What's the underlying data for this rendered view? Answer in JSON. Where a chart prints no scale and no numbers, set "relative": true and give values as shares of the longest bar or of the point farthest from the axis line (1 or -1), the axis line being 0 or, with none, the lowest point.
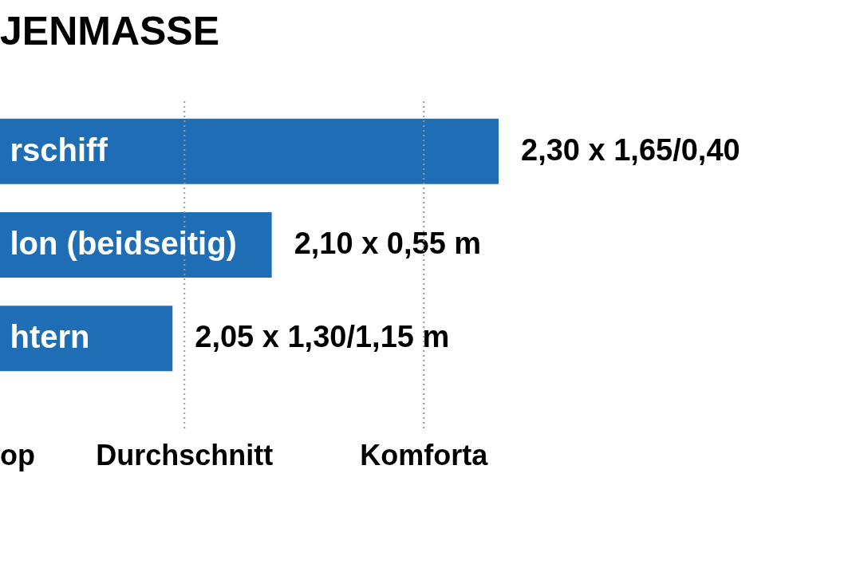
{
  "chart_data": {
    "type": "bar",
    "orientation": "horizontal",
    "relative": true,
    "title": "JENMASSE",
    "categories": [
      "rschiff",
      "lon (beidseitig)",
      "htern"
    ],
    "values": [
      1,
      0.545,
      0.346
    ],
    "color": "#1f6db5",
    "ref_lines": [
      {
        "axis": "x",
        "value": 0.37,
        "label": "Durchschnitt",
        "line_style": "dotted",
        "color": "#999999"
      },
      {
        "axis": "x",
        "value": 0.85,
        "label": "Komforta",
        "line_style": "dotted",
        "color": "#999999"
      }
    ],
    "annotations": [
      "2,30 x 1,65/0,40",
      "2,10 x 0,55 m",
      "2,05 x 1,30/1,15 m",
      "op"
    ]
  }
}
